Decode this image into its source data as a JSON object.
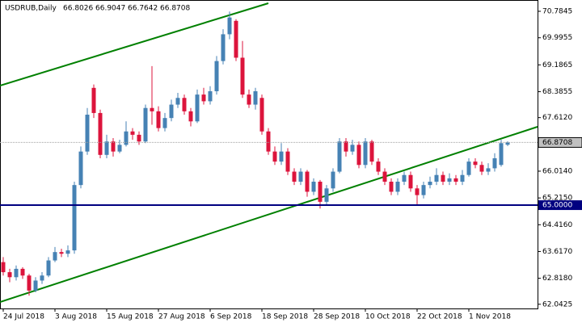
{
  "chart_data": {
    "type": "candlestick",
    "title": "USDRUB,Daily",
    "categories": [
      "24 Jul 2018",
      null,
      null,
      null,
      null,
      null,
      null,
      null,
      "3 Aug 2018",
      null,
      null,
      null,
      null,
      null,
      null,
      null,
      "15 Aug 2018",
      null,
      null,
      null,
      null,
      null,
      null,
      null,
      "27 Aug 2018",
      null,
      null,
      null,
      null,
      null,
      null,
      null,
      "6 Sep 2018",
      null,
      null,
      null,
      null,
      null,
      null,
      null,
      "18 Sep 2018",
      null,
      null,
      null,
      null,
      null,
      null,
      null,
      "28 Sep 2018",
      null,
      null,
      null,
      null,
      null,
      null,
      null,
      "10 Oct 2018",
      null,
      null,
      null,
      null,
      null,
      null,
      null,
      "22 Oct 2018",
      null,
      null,
      null,
      null,
      null,
      null,
      null,
      "1 Nov 2018",
      null,
      null,
      null,
      null,
      null,
      null
    ],
    "open": [
      63.3,
      63.0,
      62.85,
      63.1,
      62.9,
      62.45,
      62.75,
      62.9,
      63.35,
      63.6,
      63.55,
      63.65,
      65.6,
      66.6,
      68.5,
      67.75,
      66.5,
      66.9,
      66.6,
      66.8,
      67.2,
      67.1,
      66.9,
      67.9,
      67.8,
      67.3,
      67.6,
      68.0,
      68.2,
      67.8,
      67.5,
      68.3,
      68.1,
      68.4,
      69.3,
      70.1,
      70.5,
      69.4,
      68.3,
      68.0,
      68.2,
      67.2,
      66.6,
      66.3,
      66.6,
      66.0,
      65.7,
      66.0,
      65.4,
      65.7,
      65.1,
      65.5,
      66.0,
      66.9,
      66.6,
      66.8,
      66.2,
      66.9,
      66.3,
      66.0,
      65.7,
      65.4,
      65.7,
      65.9,
      65.5,
      65.3,
      65.6,
      65.7,
      65.9,
      65.7,
      65.8,
      65.7,
      65.9,
      66.3,
      66.2,
      66.0,
      66.1,
      66.2,
      66.8026
    ],
    "high": [
      63.45,
      63.1,
      63.2,
      63.15,
      62.95,
      62.85,
      63.0,
      63.45,
      63.75,
      63.7,
      63.8,
      65.7,
      66.75,
      67.9,
      68.6,
      67.85,
      67.1,
      67.0,
      66.95,
      67.5,
      67.3,
      67.2,
      68.0,
      69.15,
      67.95,
      67.75,
      68.15,
      68.35,
      68.3,
      67.9,
      68.45,
      68.5,
      68.55,
      69.45,
      70.25,
      70.78,
      70.55,
      69.9,
      68.45,
      68.5,
      68.3,
      67.3,
      66.75,
      66.85,
      66.7,
      66.1,
      66.1,
      66.05,
      65.8,
      65.75,
      65.6,
      66.1,
      67.0,
      67.0,
      66.95,
      66.9,
      67.0,
      66.95,
      66.4,
      66.1,
      65.8,
      65.8,
      66.0,
      66.0,
      65.6,
      65.7,
      65.85,
      66.1,
      66.0,
      65.95,
      65.9,
      66.05,
      66.4,
      66.4,
      66.3,
      66.25,
      66.55,
      66.95,
      66.9047
    ],
    "low": [
      62.9,
      62.7,
      62.75,
      62.8,
      62.3,
      62.4,
      62.65,
      62.85,
      63.3,
      63.45,
      63.45,
      63.55,
      65.5,
      66.5,
      67.6,
      66.4,
      66.4,
      66.45,
      66.55,
      66.75,
      66.95,
      66.8,
      66.85,
      67.4,
      67.2,
      67.2,
      67.5,
      67.9,
      67.7,
      67.35,
      67.45,
      68.0,
      68.0,
      68.3,
      69.2,
      69.95,
      69.3,
      68.2,
      67.9,
      67.85,
      67.1,
      66.5,
      66.2,
      66.2,
      65.9,
      65.6,
      65.6,
      65.25,
      65.3,
      64.9,
      65.0,
      65.4,
      65.95,
      66.45,
      66.5,
      66.1,
      66.1,
      66.2,
      65.9,
      65.6,
      65.3,
      65.3,
      65.6,
      65.4,
      65.0,
      65.2,
      65.5,
      65.6,
      65.6,
      65.6,
      65.6,
      65.6,
      65.85,
      66.1,
      65.9,
      65.9,
      66.0,
      66.15,
      66.7642
    ],
    "close": [
      63.0,
      62.85,
      63.1,
      62.9,
      62.45,
      62.75,
      62.9,
      63.35,
      63.6,
      63.55,
      63.65,
      65.6,
      66.6,
      67.7,
      67.75,
      66.5,
      66.9,
      66.6,
      66.8,
      67.2,
      67.1,
      66.9,
      67.9,
      67.8,
      67.3,
      67.6,
      68.0,
      68.2,
      67.8,
      67.5,
      68.3,
      68.1,
      68.4,
      69.3,
      70.1,
      70.6,
      69.4,
      68.3,
      68.0,
      68.4,
      67.2,
      66.6,
      66.3,
      66.6,
      66.0,
      65.7,
      66.0,
      65.4,
      65.7,
      65.1,
      65.5,
      66.0,
      66.9,
      66.6,
      66.8,
      66.2,
      66.9,
      66.3,
      66.0,
      65.7,
      65.4,
      65.7,
      65.9,
      65.5,
      65.3,
      65.6,
      65.7,
      65.9,
      65.7,
      65.8,
      65.7,
      65.9,
      66.3,
      66.2,
      66.0,
      66.1,
      66.4,
      66.85,
      66.8708
    ],
    "up_color": "#4682b4",
    "down_color": "#dc143c",
    "ylim": [
      61.917,
      71.122
    ],
    "yticks": [
      70.7845,
      69.9955,
      69.1865,
      68.3855,
      {
        "value": 67.612,
        "label": "67.6120"
      },
      {
        "value": 66.014,
        "label": "66.0140"
      },
      {
        "value": 65.215,
        "label": "65.2150"
      },
      {
        "value": 64.416,
        "label": "64.4160"
      },
      {
        "value": 63.617,
        "label": "63.6170"
      },
      {
        "value": 62.818,
        "label": "62.8180"
      },
      62.0425
    ],
    "hline": {
      "value": 65,
      "label": "65.0000",
      "color": "#000080"
    }
  }
}
